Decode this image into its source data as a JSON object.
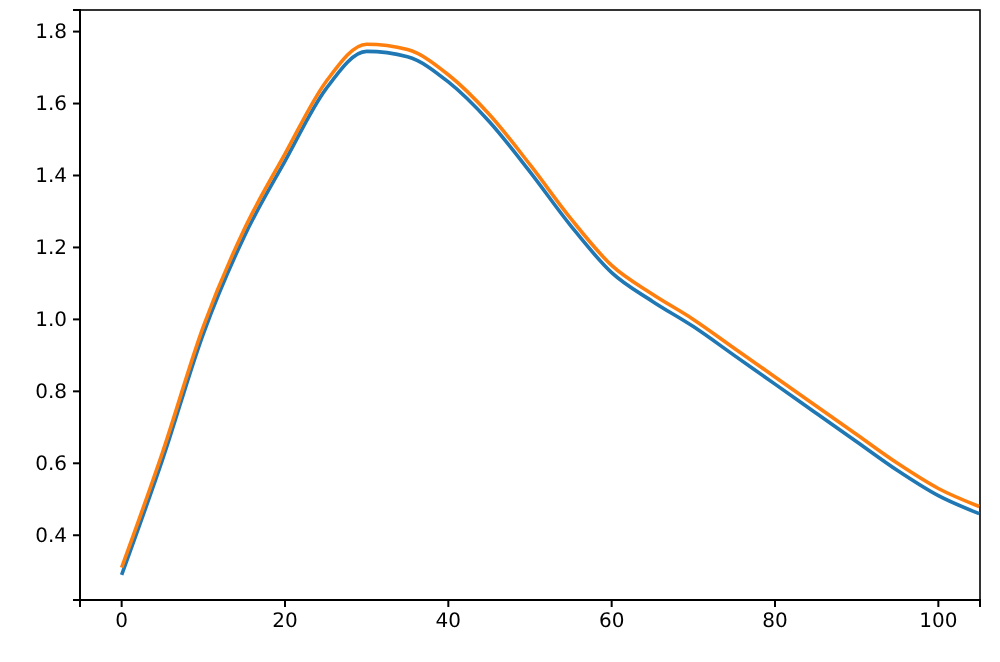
{
  "chart_data": {
    "type": "line",
    "x": [
      0,
      5,
      10,
      15,
      20,
      25,
      30,
      35,
      40,
      45,
      50,
      55,
      60,
      65,
      70,
      75,
      80,
      85,
      90,
      95,
      100,
      105
    ],
    "series": [
      {
        "color": "#1f77b4",
        "values": [
          0.29,
          0.61,
          0.96,
          1.23,
          1.44,
          1.64,
          1.745,
          1.73,
          1.66,
          1.55,
          1.41,
          1.26,
          1.13,
          1.05,
          0.98,
          0.9,
          0.82,
          0.74,
          0.66,
          0.58,
          0.51,
          0.46
        ]
      },
      {
        "color": "#ff7f0e",
        "values": [
          0.31,
          0.63,
          0.98,
          1.25,
          1.46,
          1.66,
          1.765,
          1.75,
          1.68,
          1.57,
          1.43,
          1.28,
          1.15,
          1.07,
          1.0,
          0.92,
          0.84,
          0.76,
          0.68,
          0.6,
          0.53,
          0.48
        ]
      }
    ],
    "xlim": [
      -5.1,
      105.1
    ],
    "xticks": [
      0,
      20,
      40,
      60,
      80,
      100
    ],
    "ylim": [
      0.22,
      1.86
    ],
    "yticks": [
      0.4,
      0.6,
      0.8,
      {
        "value": 1,
        "label": "1.0"
      },
      1.2,
      1.4,
      1.6,
      1.8
    ],
    "grid": false,
    "marker": "none",
    "line_style": "solid"
  }
}
